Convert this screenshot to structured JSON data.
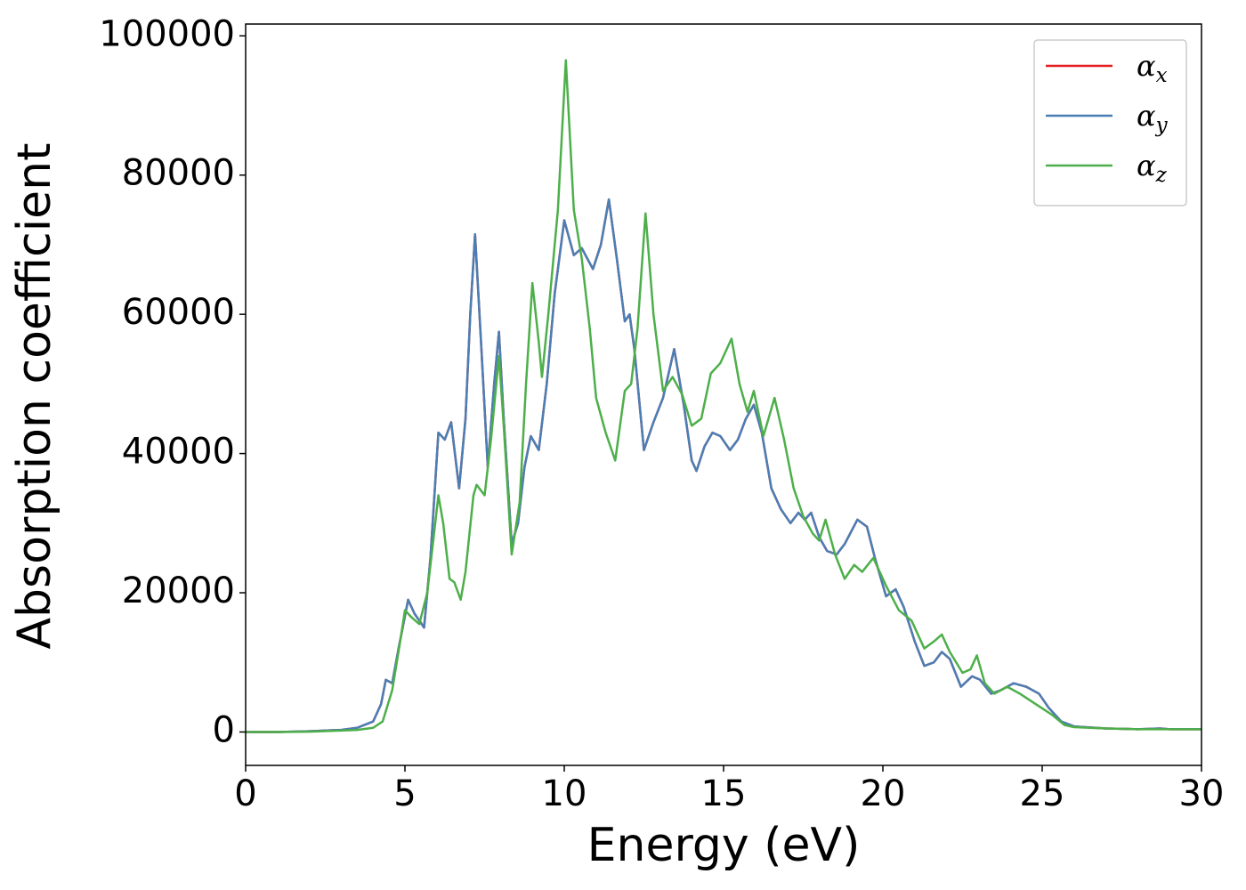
{
  "chart_data": {
    "type": "line",
    "xlabel": "Energy (eV)",
    "ylabel": "Absorption coefficient",
    "xlim": [
      0,
      30
    ],
    "xticks": [
      0,
      5,
      10,
      15,
      20,
      25,
      30
    ],
    "ylim": [
      -4800,
      101700
    ],
    "yticks": [
      0,
      20000,
      40000,
      60000,
      80000,
      100000
    ],
    "legend": "upper right",
    "grid": false,
    "series": [
      {
        "name": "αx",
        "color": "#e41a1c",
        "x": [
          0,
          1,
          2,
          3,
          3.5,
          4,
          4.25,
          4.4,
          4.6,
          4.8,
          5.1,
          5.3,
          5.6,
          5.8,
          6.05,
          6.25,
          6.45,
          6.7,
          6.9,
          7.05,
          7.2,
          7.4,
          7.6,
          7.8,
          7.95,
          8.1,
          8.35,
          8.55,
          8.75,
          8.95,
          9.2,
          9.45,
          9.7,
          10.0,
          10.3,
          10.55,
          10.9,
          11.15,
          11.4,
          11.65,
          11.9,
          12.05,
          12.2,
          12.5,
          12.8,
          13.1,
          13.45,
          13.75,
          14.0,
          14.15,
          14.4,
          14.65,
          14.9,
          15.2,
          15.45,
          15.7,
          15.95,
          16.2,
          16.5,
          16.8,
          17.1,
          17.35,
          17.55,
          17.75,
          18.0,
          18.25,
          18.55,
          18.8,
          19.2,
          19.5,
          19.75,
          20.1,
          20.4,
          20.65,
          21.0,
          21.3,
          21.6,
          21.85,
          22.1,
          22.45,
          22.8,
          23.05,
          23.4,
          23.7,
          24.1,
          24.5,
          24.9,
          25.2,
          25.6,
          26,
          27,
          28,
          28.7,
          29,
          30
        ],
        "values": [
          0,
          0,
          100,
          300,
          600,
          1500,
          4000,
          7500,
          7000,
          12000,
          19000,
          17000,
          15000,
          25000,
          43000,
          42000,
          44500,
          35000,
          45000,
          60000,
          71500,
          55000,
          38000,
          50000,
          57500,
          45000,
          27000,
          30000,
          38000,
          42500,
          40500,
          50000,
          63000,
          73500,
          68500,
          69500,
          66500,
          70000,
          76500,
          68000,
          59000,
          60000,
          55000,
          40500,
          44500,
          48000,
          55000,
          47000,
          39000,
          37500,
          41000,
          43000,
          42500,
          40500,
          42000,
          45000,
          47000,
          43000,
          35000,
          32000,
          30000,
          31500,
          30500,
          31500,
          28000,
          26000,
          25500,
          27000,
          30500,
          29500,
          25000,
          19500,
          20500,
          18000,
          13000,
          9500,
          10000,
          11500,
          10500,
          6500,
          8000,
          7500,
          5500,
          6000,
          7000,
          6500,
          5500,
          3500,
          1500,
          800,
          500,
          400,
          500,
          400,
          400
        ]
      },
      {
        "name": "αy",
        "color": "#4a7fb5",
        "x": [
          0,
          1,
          2,
          3,
          3.5,
          4,
          4.25,
          4.4,
          4.6,
          4.8,
          5.1,
          5.3,
          5.6,
          5.8,
          6.05,
          6.25,
          6.45,
          6.7,
          6.9,
          7.05,
          7.2,
          7.4,
          7.6,
          7.8,
          7.95,
          8.1,
          8.35,
          8.55,
          8.75,
          8.95,
          9.2,
          9.45,
          9.7,
          10.0,
          10.3,
          10.55,
          10.9,
          11.15,
          11.4,
          11.65,
          11.9,
          12.05,
          12.2,
          12.5,
          12.8,
          13.1,
          13.45,
          13.75,
          14.0,
          14.15,
          14.4,
          14.65,
          14.9,
          15.2,
          15.45,
          15.7,
          15.95,
          16.2,
          16.5,
          16.8,
          17.1,
          17.35,
          17.55,
          17.75,
          18.0,
          18.25,
          18.55,
          18.8,
          19.2,
          19.5,
          19.75,
          20.1,
          20.4,
          20.65,
          21.0,
          21.3,
          21.6,
          21.85,
          22.1,
          22.45,
          22.8,
          23.05,
          23.4,
          23.7,
          24.1,
          24.5,
          24.9,
          25.2,
          25.6,
          26,
          27,
          28,
          28.7,
          29,
          30
        ],
        "values": [
          0,
          0,
          100,
          300,
          600,
          1500,
          4000,
          7500,
          7000,
          12000,
          19000,
          17000,
          15000,
          25000,
          43000,
          42000,
          44500,
          35000,
          45000,
          60000,
          71500,
          55000,
          38000,
          50000,
          57500,
          45000,
          27000,
          30000,
          38000,
          42500,
          40500,
          50000,
          63000,
          73500,
          68500,
          69500,
          66500,
          70000,
          76500,
          68000,
          59000,
          60000,
          55000,
          40500,
          44500,
          48000,
          55000,
          47000,
          39000,
          37500,
          41000,
          43000,
          42500,
          40500,
          42000,
          45000,
          47000,
          43000,
          35000,
          32000,
          30000,
          31500,
          30500,
          31500,
          28000,
          26000,
          25500,
          27000,
          30500,
          29500,
          25000,
          19500,
          20500,
          18000,
          13000,
          9500,
          10000,
          11500,
          10500,
          6500,
          8000,
          7500,
          5500,
          6000,
          7000,
          6500,
          5500,
          3500,
          1500,
          800,
          500,
          400,
          500,
          400,
          400
        ]
      },
      {
        "name": "αz",
        "color": "#4daf4a",
        "x": [
          0,
          1,
          2,
          3,
          3.5,
          4,
          4.3,
          4.6,
          4.85,
          5.0,
          5.2,
          5.45,
          5.7,
          5.95,
          6.05,
          6.2,
          6.4,
          6.55,
          6.75,
          6.9,
          7.15,
          7.25,
          7.5,
          7.7,
          7.95,
          8.1,
          8.35,
          8.6,
          8.8,
          9.0,
          9.2,
          9.3,
          9.5,
          9.8,
          10.05,
          10.3,
          10.55,
          10.8,
          11.0,
          11.3,
          11.6,
          11.9,
          12.1,
          12.3,
          12.55,
          12.8,
          13.1,
          13.4,
          13.7,
          14.0,
          14.3,
          14.6,
          14.9,
          15.25,
          15.5,
          15.75,
          15.95,
          16.25,
          16.6,
          16.9,
          17.2,
          17.5,
          17.8,
          18.0,
          18.2,
          18.5,
          18.8,
          19.1,
          19.35,
          19.7,
          20.1,
          20.5,
          20.9,
          21.3,
          21.6,
          21.85,
          22.1,
          22.5,
          22.75,
          22.95,
          23.2,
          23.5,
          23.9,
          24.3,
          24.8,
          25.3,
          25.7,
          26,
          27,
          28,
          30
        ],
        "values": [
          0,
          0,
          50,
          200,
          300,
          600,
          1500,
          6000,
          13000,
          17500,
          16500,
          15500,
          20000,
          30000,
          34000,
          30000,
          22000,
          21500,
          19000,
          23000,
          34000,
          35500,
          34000,
          42000,
          54000,
          44000,
          25500,
          33000,
          50000,
          64500,
          56000,
          51000,
          60000,
          75000,
          96500,
          75000,
          68000,
          58000,
          48000,
          43000,
          39000,
          49000,
          50000,
          58000,
          74500,
          60000,
          49000,
          51000,
          48500,
          44000,
          45000,
          51500,
          53000,
          56500,
          50000,
          46000,
          49000,
          42500,
          48000,
          42000,
          35000,
          31000,
          28500,
          27500,
          30500,
          25500,
          22000,
          24000,
          23000,
          25000,
          21000,
          17500,
          16000,
          12000,
          13000,
          14000,
          11500,
          8500,
          9000,
          11000,
          7000,
          5500,
          6500,
          5500,
          4000,
          2500,
          1000,
          700,
          500,
          400,
          400
        ]
      }
    ]
  }
}
